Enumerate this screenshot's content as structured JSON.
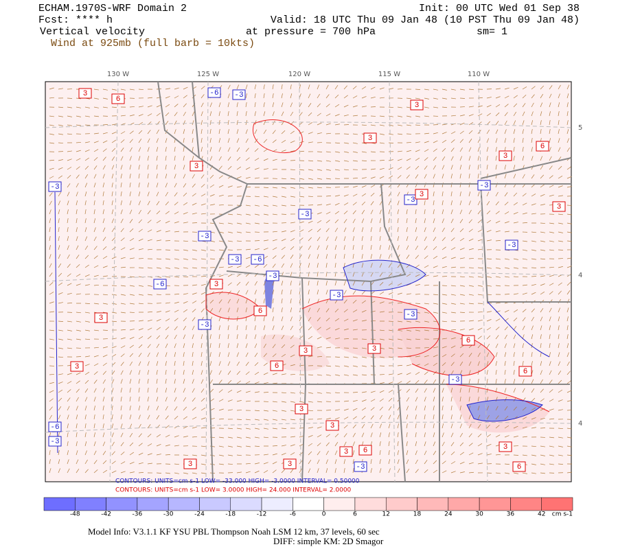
{
  "header": {
    "model": "ECHAM.1970S-WRF Domain 2",
    "fcst": "Fcst: **** h",
    "field": "Vertical velocity",
    "wind": "Wind at 925mb (full barb = 10kts)",
    "init": "Init: 00 UTC Wed 01 Sep 38",
    "valid": "Valid: 18 UTC Thu 09 Jan 48 (10 PST Thu 09 Jan 48)",
    "pressure": "at pressure =  700 hPa",
    "sm": "sm= 1"
  },
  "map": {
    "lon_labels": [
      "130 W",
      "125 W",
      "120 W",
      "115 W",
      "110 W"
    ],
    "lat_labels": [
      "5",
      "4",
      "4"
    ],
    "contour_labels": [
      "3",
      "6",
      "-6",
      "-3",
      "3",
      "3",
      "3",
      "6",
      "3",
      "-3",
      "-3",
      "-3",
      "3",
      "3",
      "-3",
      "-3",
      "-3",
      "-3",
      "-6",
      "-3",
      "-6",
      "3",
      "3",
      "-3",
      "6",
      "-3",
      "-3",
      "3",
      "3",
      "6",
      "3",
      "6",
      "-3",
      "6",
      "3",
      "3",
      "-6",
      "-3",
      "3",
      "6",
      "3",
      "3",
      "-3",
      "6",
      "3"
    ]
  },
  "contours": {
    "blue": "CONTOURS:  UNITS=cm s-1  LOW= -33.000       HIGH= -3.0000     INTERVAL= 0.50000",
    "red": "CONTOURS:  UNITS=cm s-1  LOW=  3.0000       HIGH=  24.000     INTERVAL= 2.0000"
  },
  "colorbar": {
    "labels": [
      "-48",
      "-42",
      "-36",
      "-30",
      "-24",
      "-18",
      "-12",
      "-6",
      "0",
      "6",
      "12",
      "18",
      "24",
      "30",
      "36",
      "42"
    ],
    "units": "cm s-1"
  },
  "footer": {
    "line1": "Model Info: V3.1.1    KF    YSU PBL   Thompson    Noah LSM   12 km,    37 levels,    60 sec",
    "line2": "DIFF: simple KM: 2D Smagor"
  }
}
